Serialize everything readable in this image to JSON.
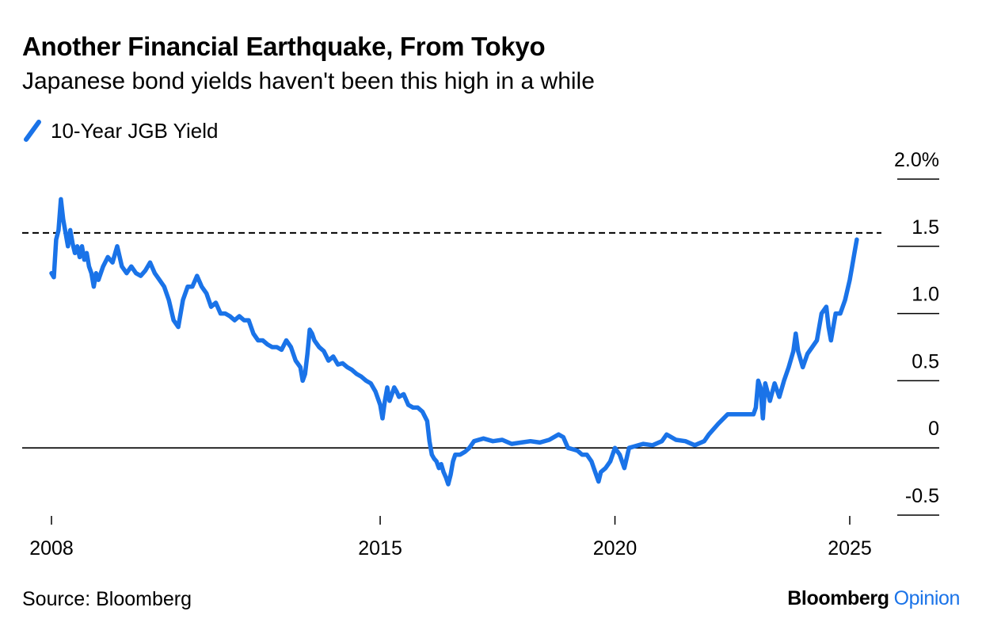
{
  "title": "Another Financial Earthquake, From Tokyo",
  "subtitle": "Japanese bond yields haven't been this high in a while",
  "source": "Source: Bloomberg",
  "brand": {
    "primary": "Bloomberg",
    "secondary": "Opinion"
  },
  "colors": {
    "series": "#1a73e8",
    "text": "#000000",
    "reference_line": "#000000"
  },
  "chart_data": {
    "type": "line",
    "title": "Another Financial Earthquake, From Tokyo",
    "subtitle": "Japanese bond yields haven't been this high in a while",
    "xlabel": "",
    "ylabel": "",
    "xlim": [
      2008.0,
      2025.6
    ],
    "ylim": [
      -0.5,
      2.0
    ],
    "y_axis_position": "right",
    "grid": false,
    "legend_position": "top-left",
    "reference_lines": [
      {
        "y": 0,
        "style": "solid"
      },
      {
        "y": 1.6,
        "style": "dashed"
      }
    ],
    "x_ticks": [
      {
        "value": 2008,
        "label": "2008"
      },
      {
        "value": 2015,
        "label": "2015"
      },
      {
        "value": 2020,
        "label": "2020"
      },
      {
        "value": 2025,
        "label": "2025"
      }
    ],
    "y_ticks": [
      {
        "value": 2.0,
        "label": "2.0%"
      },
      {
        "value": 1.5,
        "label": "1.5"
      },
      {
        "value": 1.0,
        "label": "1.0"
      },
      {
        "value": 0.5,
        "label": "0.5"
      },
      {
        "value": 0,
        "label": "0"
      },
      {
        "value": -0.5,
        "label": "-0.5"
      }
    ],
    "series": [
      {
        "name": "10-Year JGB Yield",
        "color": "#1a73e8",
        "x": [
          2008.0,
          2008.05,
          2008.1,
          2008.15,
          2008.2,
          2008.25,
          2008.3,
          2008.35,
          2008.4,
          2008.45,
          2008.5,
          2008.55,
          2008.6,
          2008.65,
          2008.7,
          2008.75,
          2008.8,
          2008.85,
          2008.9,
          2008.95,
          2009.0,
          2009.1,
          2009.2,
          2009.3,
          2009.4,
          2009.5,
          2009.6,
          2009.7,
          2009.8,
          2009.9,
          2010.0,
          2010.1,
          2010.2,
          2010.3,
          2010.4,
          2010.5,
          2010.6,
          2010.7,
          2010.8,
          2010.9,
          2011.0,
          2011.1,
          2011.2,
          2011.3,
          2011.4,
          2011.5,
          2011.6,
          2011.7,
          2011.8,
          2011.9,
          2012.0,
          2012.1,
          2012.2,
          2012.3,
          2012.4,
          2012.5,
          2012.6,
          2012.7,
          2012.8,
          2012.9,
          2013.0,
          2013.1,
          2013.2,
          2013.3,
          2013.35,
          2013.4,
          2013.45,
          2013.5,
          2013.55,
          2013.6,
          2013.7,
          2013.8,
          2013.9,
          2014.0,
          2014.1,
          2014.2,
          2014.3,
          2014.4,
          2014.5,
          2014.6,
          2014.7,
          2014.8,
          2014.9,
          2015.0,
          2015.05,
          2015.1,
          2015.15,
          2015.2,
          2015.25,
          2015.3,
          2015.35,
          2015.4,
          2015.5,
          2015.6,
          2015.7,
          2015.8,
          2015.9,
          2016.0,
          2016.05,
          2016.1,
          2016.15,
          2016.2,
          2016.25,
          2016.3,
          2016.35,
          2016.4,
          2016.45,
          2016.5,
          2016.55,
          2016.6,
          2016.7,
          2016.8,
          2016.9,
          2017.0,
          2017.2,
          2017.4,
          2017.6,
          2017.8,
          2018.0,
          2018.2,
          2018.4,
          2018.6,
          2018.8,
          2018.9,
          2019.0,
          2019.1,
          2019.2,
          2019.3,
          2019.4,
          2019.5,
          2019.55,
          2019.6,
          2019.65,
          2019.7,
          2019.8,
          2019.9,
          2020.0,
          2020.1,
          2020.2,
          2020.3,
          2020.4,
          2020.5,
          2020.6,
          2020.8,
          2021.0,
          2021.1,
          2021.2,
          2021.3,
          2021.5,
          2021.7,
          2021.9,
          2022.0,
          2022.2,
          2022.4,
          2022.6,
          2022.8,
          2022.9,
          2022.95,
          2023.0,
          2023.05,
          2023.1,
          2023.15,
          2023.2,
          2023.3,
          2023.4,
          2023.5,
          2023.6,
          2023.7,
          2023.8,
          2023.85,
          2023.9,
          2024.0,
          2024.1,
          2024.2,
          2024.3,
          2024.4,
          2024.5,
          2024.55,
          2024.6,
          2024.7,
          2024.8,
          2024.9,
          2025.0,
          2025.05,
          2025.1,
          2025.15
        ],
        "y": [
          1.3,
          1.27,
          1.55,
          1.62,
          1.85,
          1.7,
          1.6,
          1.5,
          1.62,
          1.52,
          1.45,
          1.5,
          1.42,
          1.5,
          1.4,
          1.45,
          1.35,
          1.3,
          1.2,
          1.3,
          1.25,
          1.35,
          1.42,
          1.38,
          1.5,
          1.35,
          1.3,
          1.35,
          1.3,
          1.28,
          1.32,
          1.38,
          1.3,
          1.25,
          1.2,
          1.1,
          0.95,
          0.9,
          1.1,
          1.2,
          1.2,
          1.28,
          1.2,
          1.15,
          1.05,
          1.08,
          1.0,
          1.0,
          0.98,
          0.95,
          0.98,
          0.95,
          0.95,
          0.85,
          0.8,
          0.8,
          0.77,
          0.75,
          0.75,
          0.73,
          0.8,
          0.75,
          0.65,
          0.6,
          0.5,
          0.55,
          0.7,
          0.88,
          0.85,
          0.8,
          0.75,
          0.72,
          0.65,
          0.68,
          0.62,
          0.63,
          0.6,
          0.58,
          0.55,
          0.53,
          0.5,
          0.48,
          0.42,
          0.32,
          0.22,
          0.35,
          0.45,
          0.35,
          0.4,
          0.45,
          0.42,
          0.38,
          0.4,
          0.32,
          0.3,
          0.3,
          0.27,
          0.2,
          0.05,
          -0.05,
          -0.08,
          -0.1,
          -0.15,
          -0.12,
          -0.18,
          -0.22,
          -0.27,
          -0.2,
          -0.1,
          -0.05,
          -0.05,
          -0.03,
          0.0,
          0.05,
          0.07,
          0.05,
          0.06,
          0.03,
          0.04,
          0.05,
          0.04,
          0.06,
          0.1,
          0.08,
          0.0,
          -0.01,
          -0.02,
          -0.05,
          -0.05,
          -0.1,
          -0.15,
          -0.2,
          -0.25,
          -0.18,
          -0.15,
          -0.1,
          0.0,
          -0.05,
          -0.15,
          0.0,
          0.01,
          0.02,
          0.03,
          0.02,
          0.05,
          0.1,
          0.08,
          0.06,
          0.05,
          0.02,
          0.05,
          0.1,
          0.18,
          0.25,
          0.25,
          0.25,
          0.25,
          0.25,
          0.3,
          0.5,
          0.45,
          0.22,
          0.48,
          0.35,
          0.48,
          0.38,
          0.5,
          0.6,
          0.72,
          0.85,
          0.72,
          0.6,
          0.7,
          0.75,
          0.8,
          1.0,
          1.05,
          0.9,
          0.8,
          1.0,
          1.0,
          1.1,
          1.25,
          1.35,
          1.45,
          1.55
        ]
      }
    ]
  }
}
